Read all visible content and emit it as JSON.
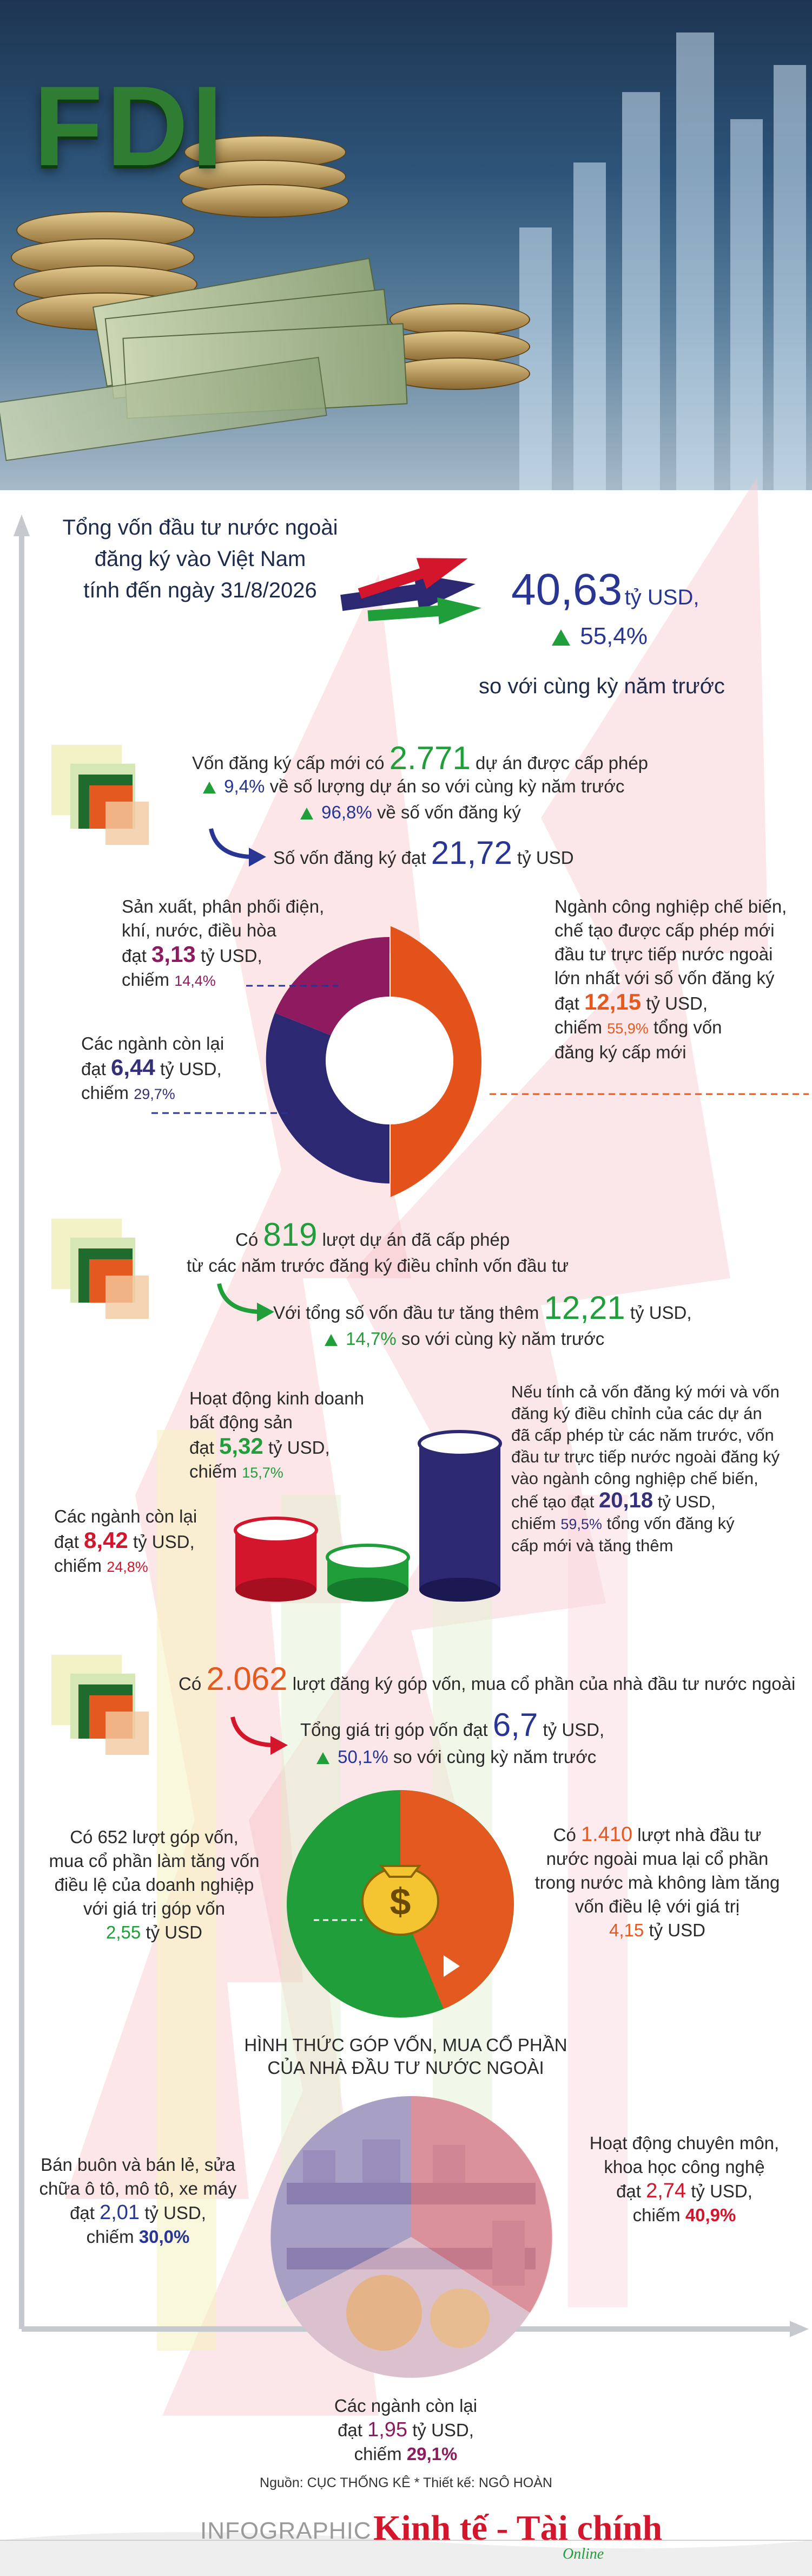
{
  "header": {
    "title": "FDI"
  },
  "summary": {
    "line1": "Tổng vốn đầu tư nước ngoài",
    "line2": "đăng ký vào Việt Nam",
    "line3": "tính đến ngày 31/8/2026",
    "total_value": "40,63",
    "total_unit": "tỷ USD,",
    "growth": "55,4%",
    "growth_caption": "so với cùng kỳ năm trước"
  },
  "new_capital": {
    "line1_pre": "Vốn đăng ký cấp mới có",
    "projects": "2.771",
    "line1_post": "dự án được cấp phép",
    "growth_projects": "9,4%",
    "growth_projects_caption": "về số lượng dự án so với cùng kỳ năm trước",
    "growth_capital": "96,8%",
    "growth_capital_caption": "về số vốn đăng ký",
    "capital_pre": "Số vốn đăng ký đạt",
    "capital_value": "21,72",
    "capital_unit": "tỷ USD"
  },
  "donut1": {
    "left_top": {
      "line1": "Sản xuất, phân phối điện,",
      "line2": "khí, nước, điều hòa",
      "pre": "đạt",
      "value": "3,13",
      "unit": "tỷ USD,",
      "share_pre": "chiếm",
      "share": "14,4%"
    },
    "left_bottom": {
      "line1": "Các ngành còn lại",
      "pre": "đạt",
      "value": "6,44",
      "unit": "tỷ USD,",
      "share_pre": "chiếm",
      "share": "29,7%"
    },
    "right": {
      "line1": "Ngành công nghiệp chế biến,",
      "line2": "chế tạo được cấp phép mới",
      "line3": "đầu tư trực tiếp nước ngoài",
      "line4": "lớn nhất với số vốn đăng ký",
      "pre": "đạt",
      "value": "12,15",
      "unit": "tỷ USD,",
      "share_pre": "chiếm",
      "share": "55,9%",
      "share_post": "tổng vốn",
      "line_last": "đăng ký cấp mới"
    },
    "colors": {
      "manufacturing": "#e4521b",
      "energy": "#8e1a5f",
      "others": "#2c2872"
    }
  },
  "adjusted": {
    "line1_pre": "Có",
    "projects": "819",
    "line1_post": "lượt dự án đã cấp phép",
    "line2": "từ các năm trước đăng ký điều chỉnh vốn đầu tư",
    "capital_pre": "Với tổng số vốn đầu tư tăng thêm",
    "capital_value": "12,21",
    "capital_unit": "tỷ USD,",
    "growth": "14,7%",
    "growth_caption": "so với cùng kỳ năm trước"
  },
  "cylinders": {
    "real_estate": {
      "line1": "Hoạt động kinh doanh",
      "line2": "bất động sản",
      "pre": "đạt",
      "value": "5,32",
      "unit": "tỷ USD,",
      "share_pre": "chiếm",
      "share": "15,7%"
    },
    "others": {
      "line1": "Các ngành còn lại",
      "pre": "đạt",
      "value": "8,42",
      "unit": "tỷ USD,",
      "share_pre": "chiếm",
      "share": "24,8%"
    },
    "manufacturing": {
      "line1": "Nếu tính cả vốn đăng ký mới và vốn",
      "line2": "đăng ký điều chỉnh của các dự án",
      "line3": "đã cấp phép từ các năm trước, vốn",
      "line4": "đầu tư trực tiếp nước ngoài đăng ký",
      "line5": "vào ngành công nghiệp chế biến,",
      "line6_pre": "chế tạo đạt",
      "value": "20,18",
      "unit": "tỷ USD,",
      "share_pre": "chiếm",
      "share": "59,5%",
      "share_post": "tổng vốn đăng ký",
      "line_last": "cấp mới và tăng thêm"
    },
    "colors": {
      "red": "#d4162c",
      "green": "#1f9e3a",
      "navy": "#2c2872"
    }
  },
  "shares": {
    "line1_pre": "Có",
    "count": "2.062",
    "line1_post": "lượt đăng ký góp vốn, mua cổ phần của nhà đầu tư nước ngoài",
    "value_pre": "Tổng giá trị góp vốn đạt",
    "value": "6,7",
    "value_unit": "tỷ USD,",
    "growth": "50,1%",
    "growth_caption": "so với cùng kỳ năm trước",
    "left": {
      "line1": "Có 652 lượt góp vốn,",
      "line2": "mua cổ phần làm tăng vốn",
      "line3": "điều lệ của doanh nghiệp",
      "line4": "với giá trị góp vốn",
      "value": "2,55",
      "unit": "tỷ USD"
    },
    "right": {
      "pre": "Có",
      "count": "1.410",
      "line1_post": "lượt nhà đầu tư",
      "line2": "nước ngoài mua lại cổ phần",
      "line3": "trong nước mà không làm tăng",
      "line4": "vốn điều lệ với giá trị",
      "value": "4,15",
      "unit": "tỷ USD"
    },
    "colors": {
      "increase": "#1f9e3a",
      "buyback": "#e4591f"
    }
  },
  "forms": {
    "title1": "HÌNH THỨC GÓP VỐN, MUA CỔ PHẦN",
    "title2": "CỦA NHÀ ĐẦU TƯ NƯỚC NGOÀI",
    "left": {
      "line1": "Bán buôn và bán lẻ, sửa",
      "line2": "chữa ô tô, mô tô, xe máy",
      "pre": "đạt",
      "value": "2,01",
      "unit": "tỷ USD,",
      "share_pre": "chiếm",
      "share": "30,0%"
    },
    "right": {
      "line1": "Hoạt động chuyên môn,",
      "line2": "khoa học công nghệ",
      "pre": "đạt",
      "value": "2,74",
      "unit": "tỷ USD,",
      "share_pre": "chiếm",
      "share": "40,9%"
    },
    "bottom": {
      "line1": "Các ngành còn lại",
      "pre": "đạt",
      "value": "1,95",
      "unit": "tỷ USD,",
      "share_pre": "chiếm",
      "share": "29,1%"
    }
  },
  "footer": {
    "source": "Nguồn: CỤC THỐNG KÊ * Thiết kế: NGÔ HOÀN",
    "brand_prefix": "INFOGRAPHIC",
    "brand_name": "Kinh tế - Tài chính",
    "brand_suffix": "Online"
  }
}
